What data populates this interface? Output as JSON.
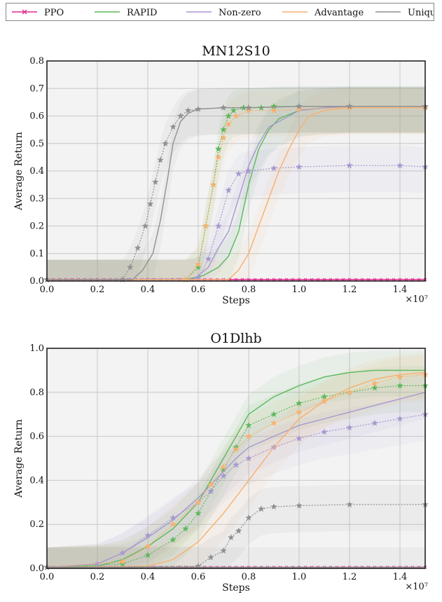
{
  "legend": {
    "items": [
      {
        "name": "PPO",
        "color": "#e0288c",
        "marker": "x"
      },
      {
        "name": "RAPID",
        "color": "#5cb85c",
        "marker": "none"
      },
      {
        "name": "Non-zero",
        "color": "#a898d0",
        "marker": "none"
      },
      {
        "name": "Advantage",
        "color": "#f8b070",
        "marker": "none"
      },
      {
        "name": "Unique",
        "color": "#909090",
        "marker": "none"
      }
    ]
  },
  "x_multiplier": "×10⁷",
  "chart_data": [
    {
      "type": "line",
      "title": "MN12S10",
      "xlabel": "Steps",
      "ylabel": "Average Return",
      "xlim": [
        0.0,
        1.5
      ],
      "ylim": [
        0.0,
        0.8
      ],
      "xticks": [
        "0.0",
        "0.2",
        "0.4",
        "0.6",
        "0.8",
        "1.0",
        "1.2",
        "1.4"
      ],
      "yticks": [
        "0.0",
        "0.1",
        "0.2",
        "0.3",
        "0.4",
        "0.5",
        "0.6",
        "0.7",
        "0.8"
      ],
      "grid": true,
      "series": [
        {
          "name": "PPO",
          "color": "#e0288c",
          "style": "solid",
          "x": [
            0.0,
            0.5,
            1.0,
            1.5
          ],
          "y": [
            0.005,
            0.005,
            0.005,
            0.005
          ]
        },
        {
          "name": "RAPID",
          "color": "#5cb85c",
          "style": "solid",
          "x": [
            0.0,
            0.55,
            0.62,
            0.68,
            0.72,
            0.76,
            0.8,
            0.84,
            0.88,
            0.92,
            1.0,
            1.1,
            1.2,
            1.3,
            1.5
          ],
          "y": [
            0.005,
            0.005,
            0.02,
            0.05,
            0.09,
            0.18,
            0.35,
            0.48,
            0.55,
            0.59,
            0.62,
            0.63,
            0.635,
            0.635,
            0.635
          ]
        },
        {
          "name": "RAPID",
          "color": "#5cb85c",
          "style": "stars",
          "x": [
            0.0,
            0.55,
            0.6,
            0.63,
            0.66,
            0.68,
            0.7,
            0.72,
            0.74,
            0.78,
            0.85,
            0.9,
            1.0,
            1.2,
            1.5
          ],
          "y": [
            0.005,
            0.005,
            0.05,
            0.2,
            0.35,
            0.48,
            0.55,
            0.6,
            0.62,
            0.63,
            0.63,
            0.635,
            0.635,
            0.635,
            0.635
          ]
        },
        {
          "name": "Non-zero",
          "color": "#a898d0",
          "style": "solid",
          "x": [
            0.0,
            0.58,
            0.64,
            0.68,
            0.72,
            0.76,
            0.8,
            0.84,
            0.88,
            0.92,
            0.96,
            1.0,
            1.1,
            1.2,
            1.5
          ],
          "y": [
            0.005,
            0.005,
            0.05,
            0.12,
            0.18,
            0.3,
            0.42,
            0.5,
            0.56,
            0.58,
            0.6,
            0.62,
            0.63,
            0.635,
            0.635
          ]
        },
        {
          "name": "Non-zero",
          "color": "#a898d0",
          "style": "stars",
          "x": [
            0.0,
            0.6,
            0.64,
            0.68,
            0.72,
            0.76,
            0.8,
            0.9,
            1.0,
            1.2,
            1.4,
            1.5
          ],
          "y": [
            0.005,
            0.01,
            0.08,
            0.2,
            0.33,
            0.39,
            0.4,
            0.41,
            0.415,
            0.42,
            0.42,
            0.415
          ]
        },
        {
          "name": "Advantage",
          "color": "#f8b070",
          "style": "solid",
          "x": [
            0.0,
            0.72,
            0.76,
            0.8,
            0.84,
            0.88,
            0.92,
            0.96,
            1.0,
            1.04,
            1.1,
            1.2,
            1.5
          ],
          "y": [
            0.005,
            0.005,
            0.04,
            0.1,
            0.2,
            0.3,
            0.4,
            0.48,
            0.55,
            0.6,
            0.62,
            0.63,
            0.63
          ]
        },
        {
          "name": "Advantage",
          "color": "#f8b070",
          "style": "stars",
          "x": [
            0.0,
            0.55,
            0.6,
            0.63,
            0.66,
            0.68,
            0.7,
            0.72,
            0.75,
            0.8,
            0.9,
            1.0,
            1.2,
            1.5
          ],
          "y": [
            0.005,
            0.005,
            0.06,
            0.2,
            0.35,
            0.45,
            0.52,
            0.57,
            0.6,
            0.62,
            0.62,
            0.625,
            0.63,
            0.63
          ]
        },
        {
          "name": "Unique",
          "color": "#909090",
          "style": "solid",
          "x": [
            0.0,
            0.34,
            0.38,
            0.42,
            0.45,
            0.48,
            0.5,
            0.53,
            0.56,
            0.6,
            0.7,
            0.8,
            1.0,
            1.5
          ],
          "y": [
            0.005,
            0.005,
            0.04,
            0.1,
            0.22,
            0.38,
            0.5,
            0.58,
            0.61,
            0.625,
            0.63,
            0.63,
            0.635,
            0.635
          ]
        },
        {
          "name": "Unique",
          "color": "#909090",
          "style": "stars",
          "x": [
            0.0,
            0.3,
            0.33,
            0.36,
            0.39,
            0.41,
            0.43,
            0.45,
            0.47,
            0.5,
            0.53,
            0.56,
            0.6,
            0.7,
            0.8,
            1.0,
            1.2,
            1.5
          ],
          "y": [
            0.005,
            0.005,
            0.05,
            0.12,
            0.2,
            0.28,
            0.36,
            0.44,
            0.5,
            0.56,
            0.6,
            0.62,
            0.625,
            0.63,
            0.63,
            0.635,
            0.635,
            0.635
          ]
        }
      ]
    },
    {
      "type": "line",
      "title": "O1Dlhb",
      "xlabel": "Steps",
      "ylabel": "Average Return",
      "xlim": [
        0.0,
        1.5
      ],
      "ylim": [
        0.0,
        1.0
      ],
      "xticks": [
        "0.0",
        "0.2",
        "0.4",
        "0.6",
        "0.8",
        "1.0",
        "1.2",
        "1.4"
      ],
      "yticks": [
        "0.0",
        "0.2",
        "0.4",
        "0.6",
        "0.8",
        "1.0"
      ],
      "grid": true,
      "series": [
        {
          "name": "PPO",
          "color": "#e0288c",
          "style": "solid",
          "x": [
            0.0,
            0.5,
            1.0,
            1.5
          ],
          "y": [
            0.005,
            0.005,
            0.005,
            0.005
          ]
        },
        {
          "name": "RAPID",
          "color": "#5cb85c",
          "style": "solid",
          "x": [
            0.0,
            0.2,
            0.3,
            0.4,
            0.5,
            0.6,
            0.65,
            0.7,
            0.75,
            0.8,
            0.9,
            1.0,
            1.1,
            1.2,
            1.3,
            1.4,
            1.5
          ],
          "y": [
            0.005,
            0.01,
            0.04,
            0.1,
            0.18,
            0.3,
            0.4,
            0.5,
            0.6,
            0.7,
            0.78,
            0.83,
            0.87,
            0.89,
            0.9,
            0.9,
            0.9
          ]
        },
        {
          "name": "RAPID",
          "color": "#5cb85c",
          "style": "stars",
          "x": [
            0.0,
            0.3,
            0.4,
            0.5,
            0.55,
            0.6,
            0.65,
            0.7,
            0.75,
            0.8,
            0.9,
            1.0,
            1.1,
            1.2,
            1.3,
            1.4,
            1.5
          ],
          "y": [
            0.005,
            0.02,
            0.06,
            0.13,
            0.18,
            0.25,
            0.35,
            0.45,
            0.55,
            0.65,
            0.7,
            0.75,
            0.78,
            0.8,
            0.82,
            0.83,
            0.83
          ]
        },
        {
          "name": "Non-zero",
          "color": "#a898d0",
          "style": "solid",
          "x": [
            0.0,
            0.2,
            0.3,
            0.4,
            0.5,
            0.6,
            0.65,
            0.7,
            0.75,
            0.8,
            0.9,
            1.0,
            1.1,
            1.2,
            1.3,
            1.4,
            1.5
          ],
          "y": [
            0.005,
            0.02,
            0.07,
            0.14,
            0.22,
            0.32,
            0.38,
            0.44,
            0.5,
            0.55,
            0.6,
            0.65,
            0.68,
            0.71,
            0.74,
            0.77,
            0.8
          ]
        },
        {
          "name": "Non-zero",
          "color": "#a898d0",
          "style": "stars",
          "x": [
            0.0,
            0.2,
            0.3,
            0.4,
            0.5,
            0.6,
            0.65,
            0.7,
            0.75,
            0.8,
            0.9,
            1.0,
            1.1,
            1.2,
            1.3,
            1.4,
            1.5
          ],
          "y": [
            0.005,
            0.02,
            0.07,
            0.15,
            0.23,
            0.3,
            0.35,
            0.42,
            0.47,
            0.5,
            0.55,
            0.59,
            0.62,
            0.64,
            0.66,
            0.68,
            0.7
          ]
        },
        {
          "name": "Advantage",
          "color": "#f8b070",
          "style": "solid",
          "x": [
            0.0,
            0.4,
            0.5,
            0.6,
            0.7,
            0.8,
            0.9,
            1.0,
            1.1,
            1.2,
            1.3,
            1.4,
            1.5
          ],
          "y": [
            0.005,
            0.01,
            0.04,
            0.12,
            0.25,
            0.4,
            0.55,
            0.68,
            0.76,
            0.82,
            0.86,
            0.88,
            0.89
          ]
        },
        {
          "name": "Advantage",
          "color": "#f8b070",
          "style": "stars",
          "x": [
            0.0,
            0.3,
            0.4,
            0.5,
            0.6,
            0.65,
            0.7,
            0.75,
            0.8,
            0.9,
            1.0,
            1.1,
            1.2,
            1.3,
            1.4,
            1.5
          ],
          "y": [
            0.005,
            0.03,
            0.1,
            0.2,
            0.3,
            0.38,
            0.46,
            0.54,
            0.6,
            0.66,
            0.71,
            0.76,
            0.8,
            0.84,
            0.87,
            0.88
          ]
        },
        {
          "name": "Unique",
          "color": "#909090",
          "style": "solid",
          "x": [
            0.0,
            0.5,
            1.0,
            1.5
          ],
          "y": [
            0.005,
            0.005,
            0.005,
            0.005
          ]
        },
        {
          "name": "Unique",
          "color": "#909090",
          "style": "stars",
          "x": [
            0.0,
            0.6,
            0.65,
            0.7,
            0.73,
            0.76,
            0.8,
            0.85,
            0.9,
            1.0,
            1.2,
            1.5
          ],
          "y": [
            0.005,
            0.01,
            0.05,
            0.08,
            0.14,
            0.17,
            0.23,
            0.27,
            0.28,
            0.285,
            0.29,
            0.29
          ]
        }
      ]
    }
  ]
}
